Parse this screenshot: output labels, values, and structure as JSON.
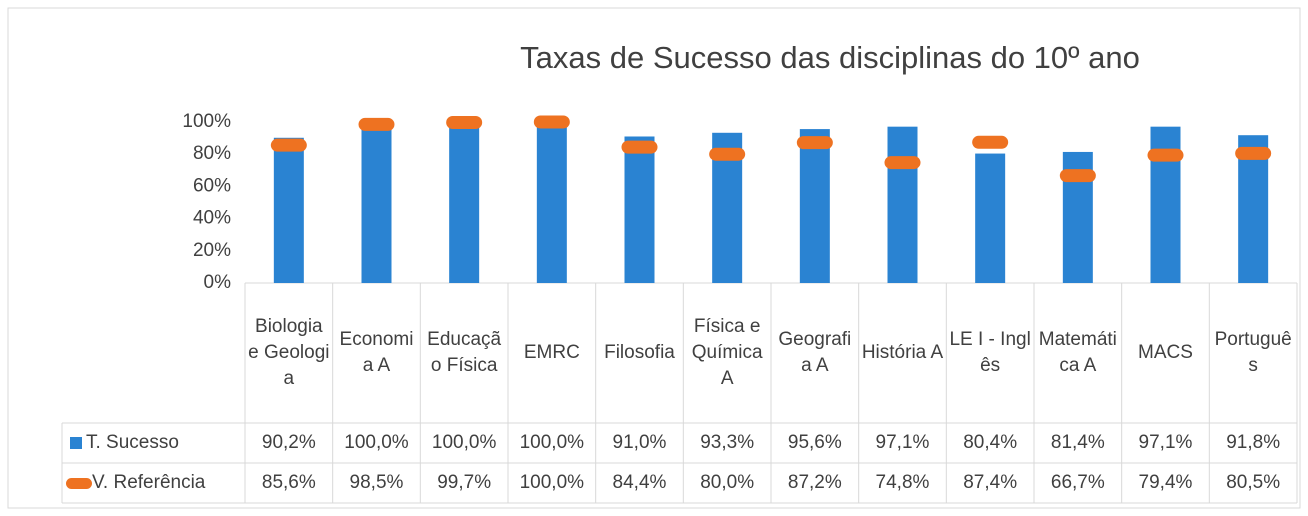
{
  "chart_data": {
    "type": "bar",
    "title": "Taxas de Sucesso das disciplinas do 10º ano",
    "categories": [
      "Biologia e Geologia",
      "Economia A",
      "Educação Física",
      "EMRC",
      "Filosofia",
      "Física e Química A",
      "Geografia A",
      "História A",
      "LE I - Inglês",
      "Matemática A",
      "MACS",
      "Português"
    ],
    "series": [
      {
        "name": "T. Sucesso",
        "type": "bar",
        "color": "#2a83d2",
        "values": [
          90.2,
          100,
          100,
          100,
          91.0,
          93.3,
          95.6,
          97.1,
          80.4,
          81.4,
          97.1,
          91.8
        ],
        "value_labels": [
          "90,2%",
          "100,0%",
          "100,0%",
          "100,0%",
          "91,0%",
          "93,3%",
          "95,6%",
          "97,1%",
          "80,4%",
          "81,4%",
          "97,1%",
          "91,8%"
        ]
      },
      {
        "name": "V. Referência",
        "type": "marker",
        "color": "#ee7221",
        "values": [
          85.6,
          98.5,
          99.7,
          100,
          84.4,
          80.0,
          87.2,
          74.8,
          87.4,
          66.7,
          79.4,
          80.5
        ],
        "value_labels": [
          "85,6%",
          "98,5%",
          "99,7%",
          "100,0%",
          "84,4%",
          "80,0%",
          "87,2%",
          "74,8%",
          "87,4%",
          "66,7%",
          "79,4%",
          "80,5%"
        ]
      }
    ],
    "ylim": [
      0,
      100
    ],
    "yticks": [
      {
        "value": 0,
        "label": "0%"
      },
      {
        "value": 20,
        "label": "20%"
      },
      {
        "value": 40,
        "label": "40%"
      },
      {
        "value": 60,
        "label": "60%"
      },
      {
        "value": 80,
        "label": "80%"
      },
      {
        "value": 100,
        "label": "100%"
      }
    ],
    "grid": false
  }
}
